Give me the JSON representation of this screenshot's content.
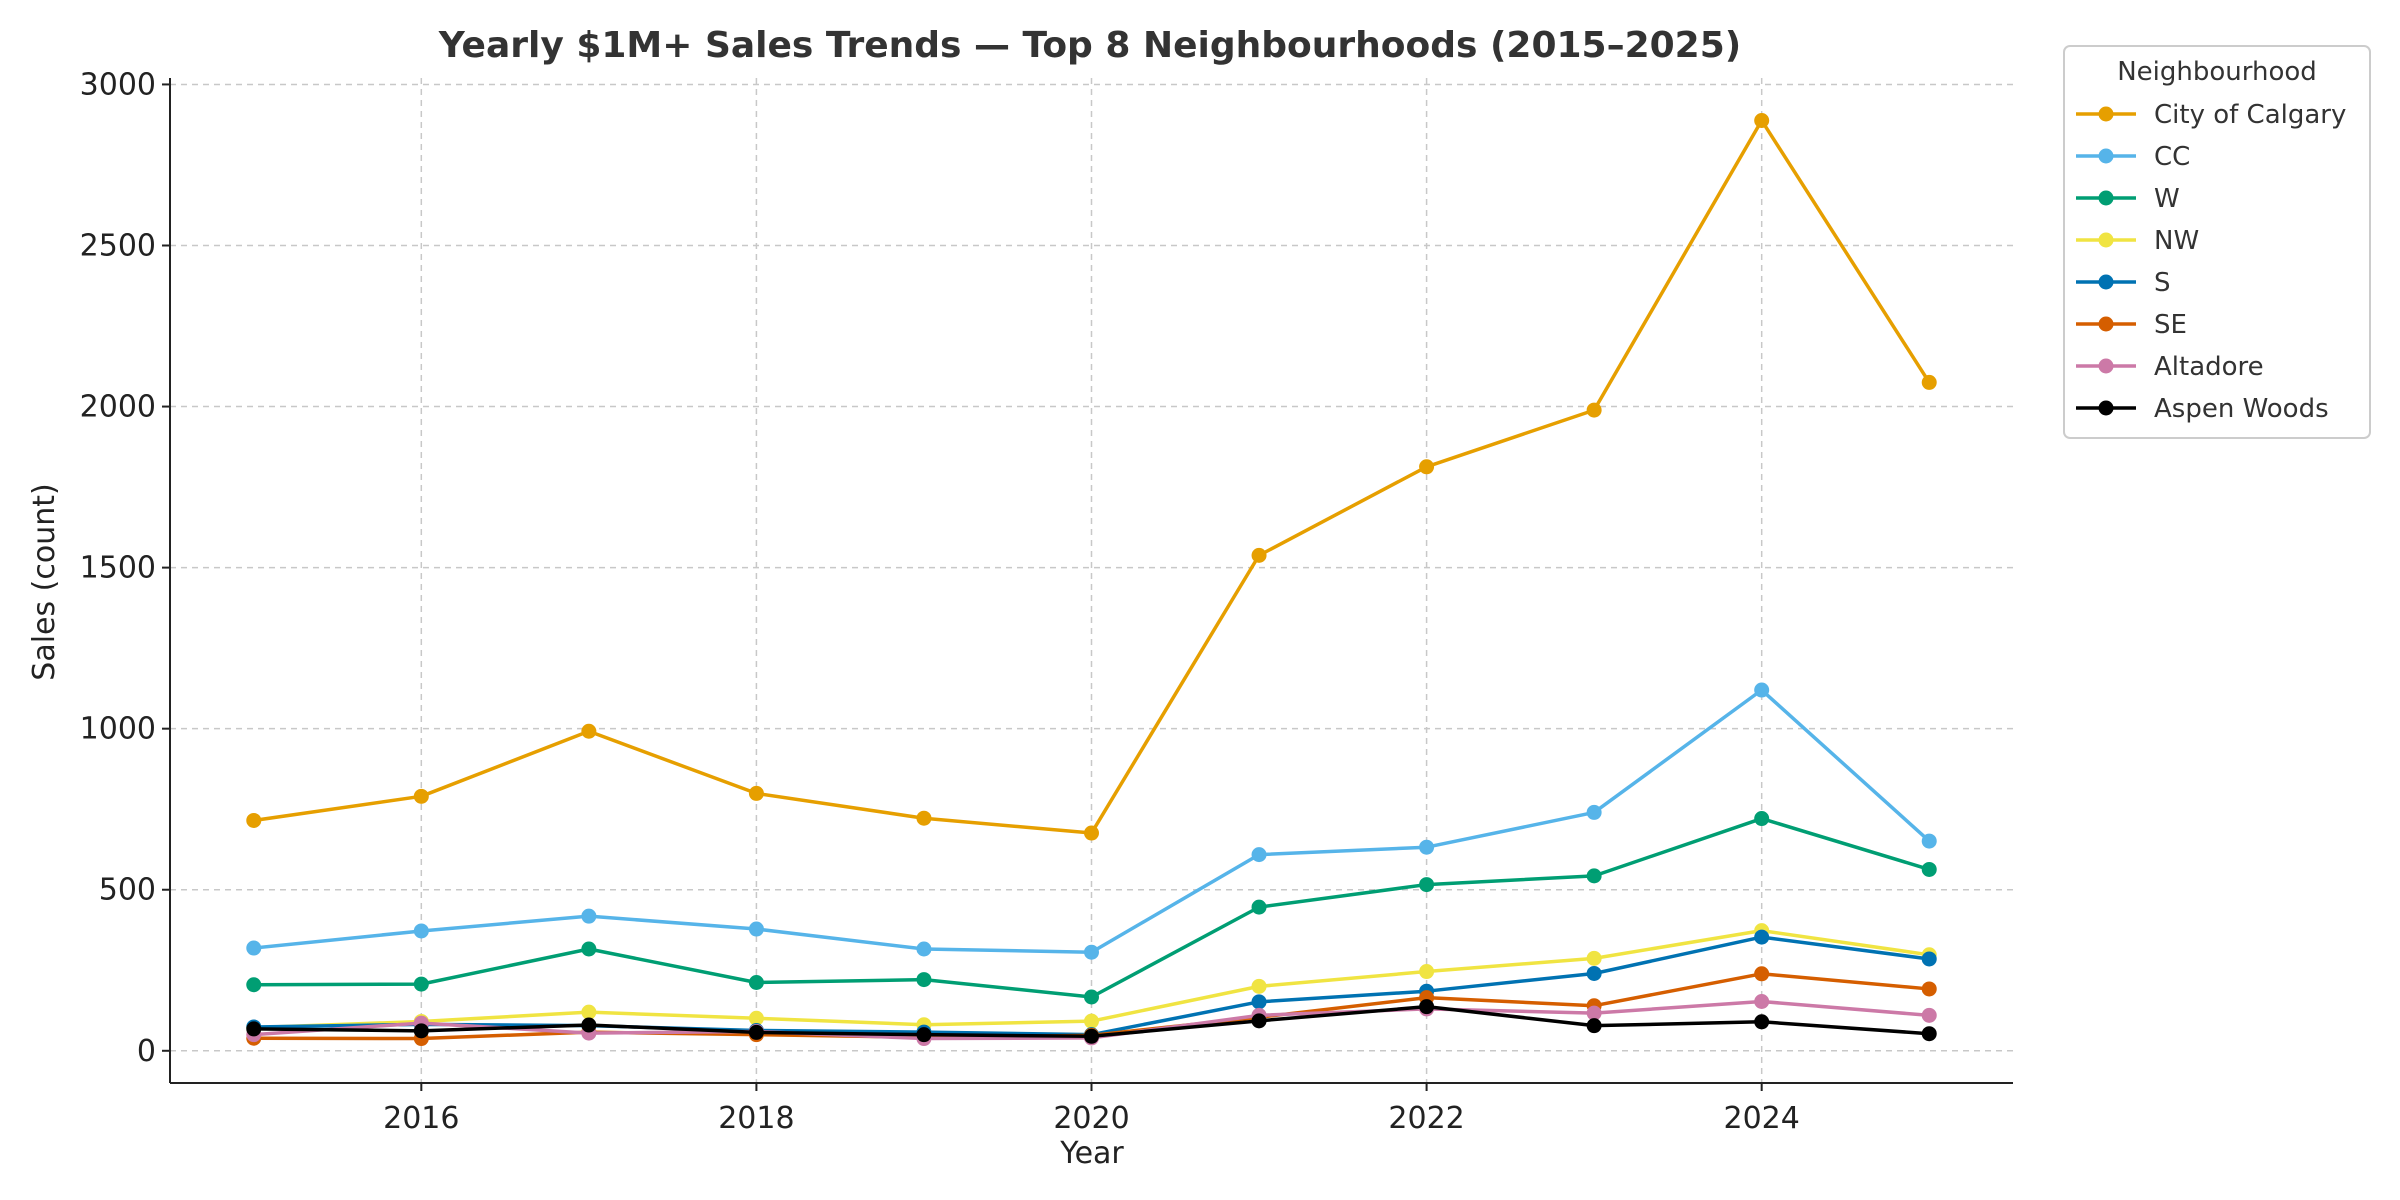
{
  "chart_data": {
    "type": "line",
    "title": "Yearly $1M+ Sales Trends — Top 8 Neighbourhoods (2015–2025)",
    "xlabel": "Year",
    "ylabel": "Sales (count)",
    "x": [
      2015,
      2016,
      2017,
      2018,
      2019,
      2020,
      2021,
      2022,
      2023,
      2024,
      2025
    ],
    "xlim": [
      2014.5,
      2025.5
    ],
    "ylim": [
      -100,
      3020
    ],
    "xticks": [
      2016,
      2018,
      2020,
      2022,
      2024
    ],
    "yticks": [
      0,
      500,
      1000,
      1500,
      2000,
      2500,
      3000
    ],
    "grid": true,
    "legend": {
      "title": "Neighbourhood",
      "placement": "outside-top-right"
    },
    "series": [
      {
        "name": "City of Calgary",
        "color": "#E69F00",
        "values": [
          715,
          790,
          992,
          799,
          722,
          676,
          1538,
          1813,
          1989,
          2888,
          2075
        ]
      },
      {
        "name": "CC",
        "color": "#56B4E9",
        "values": [
          319,
          372,
          418,
          378,
          316,
          306,
          609,
          632,
          740,
          1120,
          651
        ]
      },
      {
        "name": "W",
        "color": "#009E73",
        "values": [
          205,
          207,
          316,
          212,
          221,
          167,
          446,
          516,
          543,
          721,
          563
        ]
      },
      {
        "name": "NW",
        "color": "#F0E442",
        "values": [
          72,
          91,
          120,
          101,
          81,
          92,
          200,
          246,
          287,
          373,
          298
        ]
      },
      {
        "name": "S",
        "color": "#0072B2",
        "values": [
          74,
          82,
          78,
          63,
          58,
          50,
          152,
          185,
          240,
          353,
          285
        ]
      },
      {
        "name": "SE",
        "color": "#D55E00",
        "values": [
          39,
          38,
          58,
          50,
          42,
          48,
          104,
          165,
          140,
          239,
          192
        ]
      },
      {
        "name": "Altadore",
        "color": "#CC79A7",
        "values": [
          50,
          86,
          55,
          60,
          38,
          40,
          110,
          130,
          117,
          153,
          110
        ]
      },
      {
        "name": "Aspen Woods",
        "color": "#000000",
        "values": [
          68,
          62,
          80,
          57,
          50,
          45,
          93,
          137,
          78,
          90,
          53
        ]
      }
    ]
  }
}
